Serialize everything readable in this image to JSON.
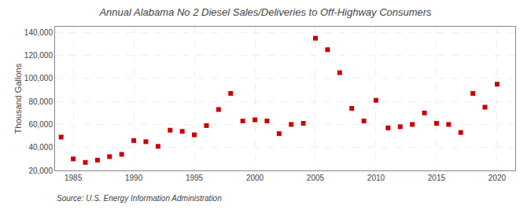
{
  "chart_data": {
    "type": "scatter",
    "title": "Annual Alabama No 2 Diesel Sales/Deliveries to Off-Highway Consumers",
    "ylabel": "Thousand Gallons",
    "annotations": [
      "Source: U.S. Energy Information Administration"
    ],
    "x": [
      1984,
      1985,
      1986,
      1987,
      1988,
      1989,
      1990,
      1991,
      1992,
      1993,
      1994,
      1995,
      1996,
      1997,
      1998,
      1999,
      2000,
      2001,
      2002,
      2003,
      2004,
      2005,
      2006,
      2007,
      2008,
      2009,
      2010,
      2011,
      2012,
      2013,
      2014,
      2015,
      2016,
      2017,
      2018,
      2019,
      2020
    ],
    "values": [
      49000,
      30000,
      27000,
      29000,
      32000,
      34000,
      46000,
      45000,
      41000,
      55000,
      54000,
      51000,
      59000,
      73000,
      87000,
      63000,
      64000,
      63000,
      52000,
      60000,
      61000,
      135000,
      125000,
      105000,
      74000,
      63000,
      81000,
      57000,
      58000,
      60000,
      70000,
      61000,
      60000,
      53000,
      87000,
      75000,
      95000
    ],
    "color": "#cc0000",
    "marker": "square",
    "xlim": [
      1983.5,
      2021.5
    ],
    "xticks": [
      1985,
      1990,
      1995,
      2000,
      2005,
      2010,
      2015,
      2020
    ],
    "ylim": [
      20000,
      145000
    ],
    "yticks": [
      {
        "value": 20000,
        "label": "20,000"
      },
      {
        "value": 40000,
        "label": "40,000"
      },
      {
        "value": 60000,
        "label": "60,000"
      },
      {
        "value": 80000,
        "label": "80,000"
      },
      {
        "value": 100000,
        "label": "100,000"
      },
      {
        "value": 120000,
        "label": "120,000"
      },
      {
        "value": 140000,
        "label": "140,000"
      }
    ],
    "grid": true
  }
}
